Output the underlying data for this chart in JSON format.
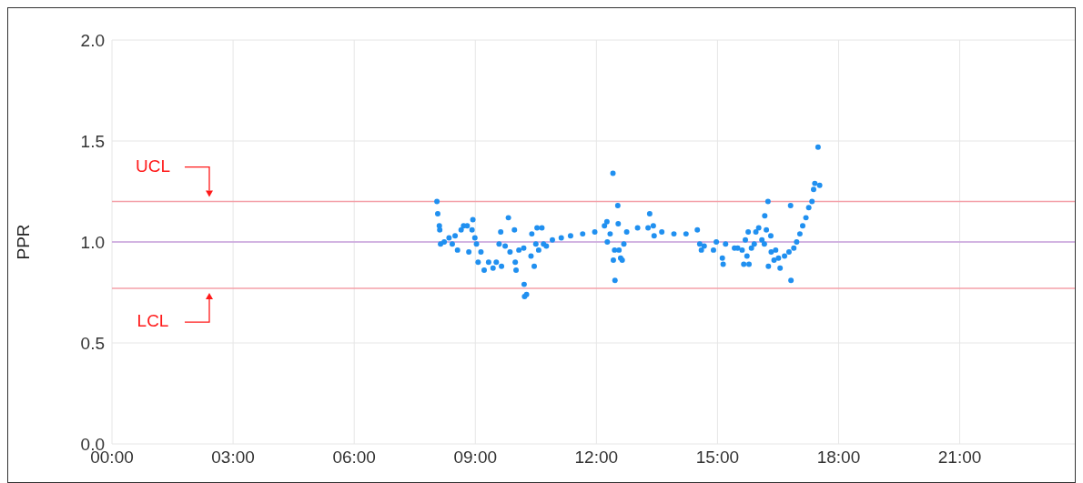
{
  "chart_data": {
    "type": "scatter",
    "ylabel": "PPR",
    "xlim": [
      0,
      23.85
    ],
    "ylim": [
      0,
      2
    ],
    "xticks": [
      {
        "value": 0,
        "label": "00:00"
      },
      {
        "value": 3,
        "label": "03:00"
      },
      {
        "value": 6,
        "label": "06:00"
      },
      {
        "value": 9,
        "label": "09:00"
      },
      {
        "value": 12,
        "label": "12:00"
      },
      {
        "value": 15,
        "label": "15:00"
      },
      {
        "value": 18,
        "label": "18:00"
      },
      {
        "value": 21,
        "label": "21:00"
      }
    ],
    "yticks": [
      {
        "value": 0,
        "label": "0.0"
      },
      {
        "value": 0.5,
        "label": "0.5"
      },
      {
        "value": 1,
        "label": "1.0"
      },
      {
        "value": 1.5,
        "label": "1.5"
      },
      {
        "value": 2,
        "label": "2.0"
      }
    ],
    "grid": true,
    "legend": false,
    "marker": "circle",
    "ref_lines": [
      {
        "axis": "y",
        "value": 1.2,
        "label": "UCL",
        "color": "#f4a0a8"
      },
      {
        "axis": "y",
        "value": 1.0,
        "label": null,
        "color": "#c9a0dc"
      },
      {
        "axis": "y",
        "value": 0.77,
        "label": "LCL",
        "color": "#f4a0a8"
      }
    ],
    "series": [
      {
        "color": "#2090f0",
        "x": [
          8.05,
          8.07,
          8.11,
          8.12,
          8.14,
          8.23,
          8.35,
          8.43,
          8.5,
          8.56,
          8.65,
          8.71,
          8.8,
          8.84,
          8.94,
          8.92,
          8.99,
          9.03,
          9.07,
          9.14,
          9.22,
          9.33,
          9.44,
          9.52,
          9.59,
          9.63,
          9.65,
          9.74,
          9.82,
          9.86,
          9.97,
          9.99,
          10.01,
          10.08,
          10.2,
          10.21,
          10.22,
          10.27,
          10.38,
          10.4,
          10.46,
          10.5,
          10.53,
          10.57,
          10.65,
          10.69,
          10.76,
          10.91,
          11.13,
          11.36,
          11.66,
          11.96,
          12.2,
          12.26,
          12.27,
          12.34,
          12.41,
          12.45,
          12.42,
          12.46,
          12.53,
          12.54,
          12.56,
          12.6,
          12.64,
          12.68,
          12.75,
          13.02,
          13.32,
          13.28,
          13.41,
          13.43,
          13.62,
          13.92,
          14.22,
          14.5,
          14.56,
          14.6,
          14.67,
          14.9,
          14.97,
          15.12,
          15.14,
          15.2,
          15.42,
          15.5,
          15.61,
          15.65,
          15.69,
          15.73,
          15.76,
          15.78,
          15.84,
          15.91,
          15.95,
          16.02,
          16.1,
          16.17,
          16.16,
          16.21,
          16.25,
          16.26,
          16.32,
          16.33,
          16.4,
          16.44,
          16.51,
          16.55,
          16.66,
          16.77,
          16.81,
          16.82,
          16.89,
          16.96,
          17.04,
          17.11,
          17.19,
          17.26,
          17.34,
          17.38,
          17.41,
          17.49,
          17.53
        ],
        "values": [
          1.2,
          1.14,
          1.08,
          1.06,
          0.99,
          1.0,
          1.02,
          0.99,
          1.03,
          0.96,
          1.06,
          1.08,
          1.08,
          0.95,
          1.11,
          1.06,
          1.02,
          0.99,
          0.9,
          0.95,
          0.86,
          0.9,
          0.87,
          0.9,
          0.99,
          1.05,
          0.88,
          0.98,
          1.12,
          0.95,
          1.06,
          0.9,
          0.86,
          0.96,
          0.97,
          0.79,
          0.73,
          0.74,
          0.93,
          1.04,
          0.88,
          0.99,
          1.07,
          0.96,
          1.07,
          0.99,
          0.98,
          1.01,
          1.02,
          1.03,
          1.04,
          1.05,
          1.08,
          1.1,
          1.0,
          1.04,
          1.34,
          0.96,
          0.91,
          0.81,
          1.18,
          1.09,
          0.96,
          0.92,
          0.91,
          0.99,
          1.05,
          1.07,
          1.14,
          1.07,
          1.08,
          1.03,
          1.05,
          1.04,
          1.04,
          1.06,
          0.99,
          0.96,
          0.98,
          0.96,
          1.0,
          0.92,
          0.89,
          0.99,
          0.97,
          0.97,
          0.96,
          0.89,
          1.01,
          0.93,
          1.05,
          0.89,
          0.97,
          0.99,
          1.05,
          1.07,
          1.01,
          1.13,
          0.99,
          1.06,
          1.2,
          0.88,
          1.03,
          0.95,
          0.91,
          0.96,
          0.92,
          0.87,
          0.93,
          0.95,
          1.18,
          0.81,
          0.97,
          1.0,
          1.04,
          1.08,
          1.12,
          1.17,
          1.2,
          1.26,
          1.29,
          1.47,
          1.28
        ]
      }
    ]
  }
}
